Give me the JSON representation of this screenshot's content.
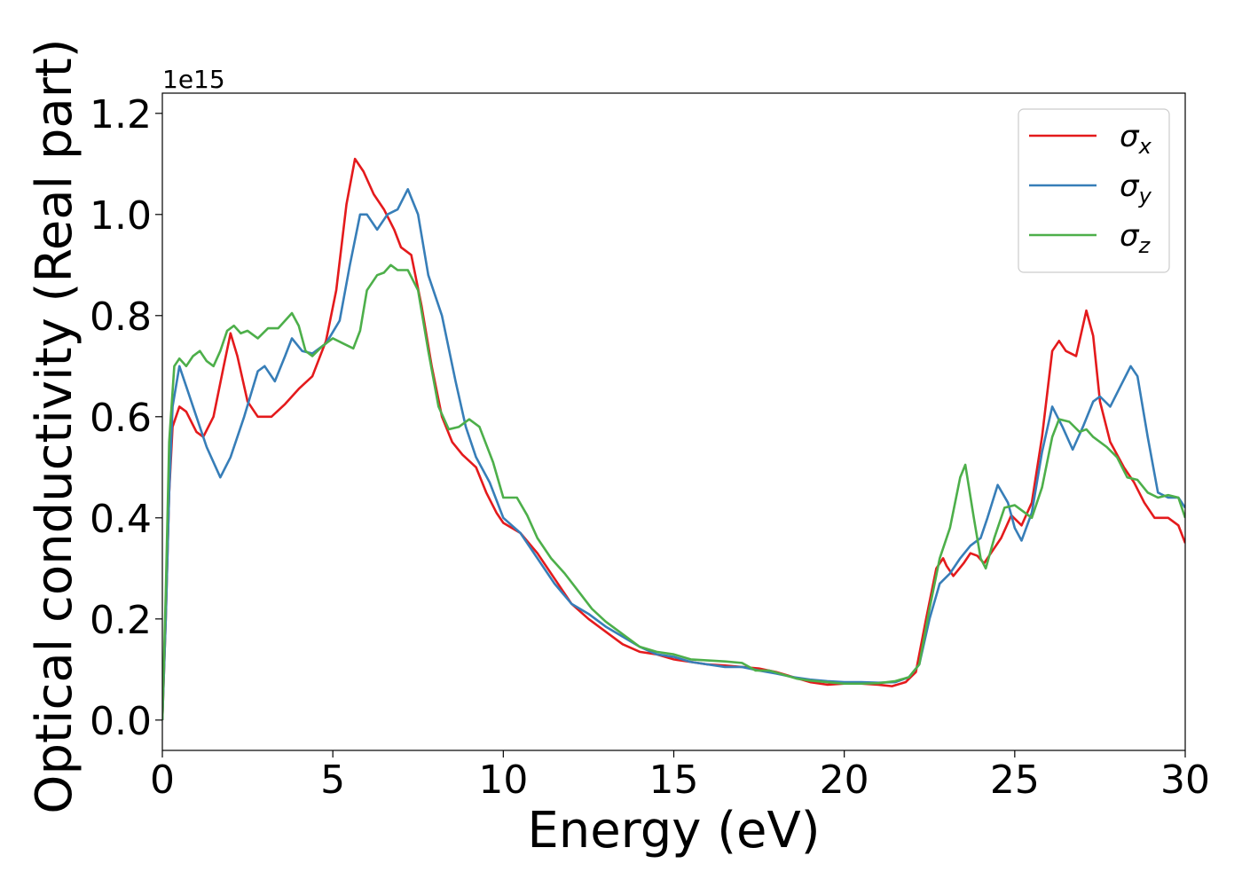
{
  "chart_data": {
    "type": "line",
    "title": "",
    "xlabel": "Energy (eV)",
    "ylabel": "Optical conductivity (Real part)",
    "y_offset_label": "1e15",
    "xlim": [
      0,
      30
    ],
    "ylim": [
      -0.06,
      1.24
    ],
    "xticks": [
      0,
      5,
      10,
      15,
      20,
      25,
      30
    ],
    "xtick_labels": [
      "0",
      "5",
      "10",
      "15",
      "20",
      "25",
      "30"
    ],
    "yticks": [
      0.0,
      0.2,
      0.4,
      0.6,
      0.8,
      1.0,
      1.2
    ],
    "ytick_labels": [
      "0.0",
      "0.2",
      "0.4",
      "0.6",
      "0.8",
      "1.0",
      "1.2"
    ],
    "grid": false,
    "legend_position": "top-right",
    "series": [
      {
        "name": "σx",
        "legend_base": "σ",
        "legend_sub": "x",
        "color": "#e41a1c",
        "points": [
          [
            0,
            0
          ],
          [
            0.1,
            0.2
          ],
          [
            0.2,
            0.45
          ],
          [
            0.3,
            0.58
          ],
          [
            0.5,
            0.62
          ],
          [
            0.7,
            0.61
          ],
          [
            1.0,
            0.57
          ],
          [
            1.2,
            0.56
          ],
          [
            1.5,
            0.6
          ],
          [
            1.8,
            0.7
          ],
          [
            2.0,
            0.765
          ],
          [
            2.2,
            0.72
          ],
          [
            2.5,
            0.63
          ],
          [
            2.8,
            0.6
          ],
          [
            3.2,
            0.6
          ],
          [
            3.6,
            0.625
          ],
          [
            4.0,
            0.655
          ],
          [
            4.4,
            0.68
          ],
          [
            4.8,
            0.75
          ],
          [
            5.1,
            0.85
          ],
          [
            5.4,
            1.02
          ],
          [
            5.65,
            1.11
          ],
          [
            5.9,
            1.085
          ],
          [
            6.2,
            1.04
          ],
          [
            6.5,
            1.01
          ],
          [
            6.8,
            0.97
          ],
          [
            7.0,
            0.935
          ],
          [
            7.3,
            0.92
          ],
          [
            7.6,
            0.82
          ],
          [
            7.9,
            0.7
          ],
          [
            8.2,
            0.6
          ],
          [
            8.5,
            0.55
          ],
          [
            8.8,
            0.525
          ],
          [
            9.2,
            0.5
          ],
          [
            9.5,
            0.45
          ],
          [
            9.8,
            0.41
          ],
          [
            10.0,
            0.39
          ],
          [
            10.5,
            0.37
          ],
          [
            11.0,
            0.33
          ],
          [
            11.5,
            0.28
          ],
          [
            12.0,
            0.23
          ],
          [
            12.5,
            0.2
          ],
          [
            13.0,
            0.175
          ],
          [
            13.5,
            0.15
          ],
          [
            14.0,
            0.135
          ],
          [
            14.5,
            0.13
          ],
          [
            15.0,
            0.12
          ],
          [
            15.5,
            0.115
          ],
          [
            16.0,
            0.11
          ],
          [
            16.5,
            0.108
          ],
          [
            17.0,
            0.105
          ],
          [
            17.5,
            0.102
          ],
          [
            18.0,
            0.095
          ],
          [
            18.5,
            0.085
          ],
          [
            19.0,
            0.075
          ],
          [
            19.5,
            0.07
          ],
          [
            20.0,
            0.072
          ],
          [
            20.5,
            0.072
          ],
          [
            21.0,
            0.07
          ],
          [
            21.4,
            0.067
          ],
          [
            21.8,
            0.075
          ],
          [
            22.1,
            0.095
          ],
          [
            22.4,
            0.2
          ],
          [
            22.7,
            0.3
          ],
          [
            22.9,
            0.32
          ],
          [
            23.0,
            0.305
          ],
          [
            23.2,
            0.285
          ],
          [
            23.5,
            0.31
          ],
          [
            23.7,
            0.33
          ],
          [
            23.9,
            0.325
          ],
          [
            24.1,
            0.31
          ],
          [
            24.3,
            0.33
          ],
          [
            24.6,
            0.36
          ],
          [
            24.9,
            0.405
          ],
          [
            25.2,
            0.385
          ],
          [
            25.5,
            0.43
          ],
          [
            25.8,
            0.56
          ],
          [
            26.1,
            0.73
          ],
          [
            26.3,
            0.75
          ],
          [
            26.5,
            0.73
          ],
          [
            26.8,
            0.72
          ],
          [
            27.1,
            0.81
          ],
          [
            27.3,
            0.76
          ],
          [
            27.5,
            0.63
          ],
          [
            27.8,
            0.55
          ],
          [
            28.2,
            0.5
          ],
          [
            28.5,
            0.47
          ],
          [
            28.8,
            0.43
          ],
          [
            29.1,
            0.4
          ],
          [
            29.5,
            0.4
          ],
          [
            29.8,
            0.385
          ],
          [
            30.0,
            0.35
          ]
        ]
      },
      {
        "name": "σy",
        "legend_base": "σ",
        "legend_sub": "y",
        "color": "#377eb8",
        "points": [
          [
            0,
            0
          ],
          [
            0.1,
            0.2
          ],
          [
            0.2,
            0.45
          ],
          [
            0.3,
            0.62
          ],
          [
            0.5,
            0.7
          ],
          [
            0.7,
            0.66
          ],
          [
            1.0,
            0.6
          ],
          [
            1.3,
            0.54
          ],
          [
            1.7,
            0.48
          ],
          [
            2.0,
            0.52
          ],
          [
            2.4,
            0.6
          ],
          [
            2.8,
            0.69
          ],
          [
            3.0,
            0.7
          ],
          [
            3.3,
            0.67
          ],
          [
            3.6,
            0.72
          ],
          [
            3.8,
            0.755
          ],
          [
            4.1,
            0.73
          ],
          [
            4.4,
            0.725
          ],
          [
            4.8,
            0.745
          ],
          [
            5.2,
            0.79
          ],
          [
            5.5,
            0.9
          ],
          [
            5.8,
            1.0
          ],
          [
            6.0,
            1.0
          ],
          [
            6.3,
            0.97
          ],
          [
            6.6,
            1.0
          ],
          [
            6.9,
            1.01
          ],
          [
            7.2,
            1.05
          ],
          [
            7.5,
            1.0
          ],
          [
            7.8,
            0.88
          ],
          [
            8.2,
            0.8
          ],
          [
            8.6,
            0.67
          ],
          [
            8.9,
            0.58
          ],
          [
            9.2,
            0.52
          ],
          [
            9.6,
            0.47
          ],
          [
            10.0,
            0.4
          ],
          [
            10.5,
            0.37
          ],
          [
            11.0,
            0.32
          ],
          [
            11.5,
            0.27
          ],
          [
            12.0,
            0.23
          ],
          [
            12.5,
            0.21
          ],
          [
            13.0,
            0.185
          ],
          [
            13.5,
            0.165
          ],
          [
            14.0,
            0.145
          ],
          [
            14.5,
            0.13
          ],
          [
            15.0,
            0.125
          ],
          [
            15.5,
            0.115
          ],
          [
            16.0,
            0.11
          ],
          [
            16.5,
            0.105
          ],
          [
            17.0,
            0.105
          ],
          [
            17.5,
            0.098
          ],
          [
            18.0,
            0.092
          ],
          [
            18.5,
            0.085
          ],
          [
            19.0,
            0.08
          ],
          [
            19.5,
            0.077
          ],
          [
            20.0,
            0.075
          ],
          [
            20.5,
            0.075
          ],
          [
            21.0,
            0.074
          ],
          [
            21.5,
            0.075
          ],
          [
            21.9,
            0.085
          ],
          [
            22.2,
            0.11
          ],
          [
            22.5,
            0.2
          ],
          [
            22.8,
            0.27
          ],
          [
            23.1,
            0.29
          ],
          [
            23.4,
            0.32
          ],
          [
            23.7,
            0.345
          ],
          [
            24.0,
            0.36
          ],
          [
            24.2,
            0.4
          ],
          [
            24.5,
            0.465
          ],
          [
            24.8,
            0.43
          ],
          [
            25.0,
            0.38
          ],
          [
            25.2,
            0.355
          ],
          [
            25.5,
            0.41
          ],
          [
            25.8,
            0.53
          ],
          [
            26.1,
            0.62
          ],
          [
            26.4,
            0.58
          ],
          [
            26.7,
            0.535
          ],
          [
            27.0,
            0.58
          ],
          [
            27.3,
            0.63
          ],
          [
            27.5,
            0.64
          ],
          [
            27.8,
            0.62
          ],
          [
            28.1,
            0.66
          ],
          [
            28.4,
            0.7
          ],
          [
            28.6,
            0.68
          ],
          [
            28.9,
            0.56
          ],
          [
            29.2,
            0.45
          ],
          [
            29.5,
            0.44
          ],
          [
            29.8,
            0.44
          ],
          [
            30.0,
            0.42
          ]
        ]
      },
      {
        "name": "σz",
        "legend_base": "σ",
        "legend_sub": "z",
        "color": "#4daf4a",
        "points": [
          [
            0,
            0
          ],
          [
            0.1,
            0.25
          ],
          [
            0.2,
            0.55
          ],
          [
            0.35,
            0.7
          ],
          [
            0.5,
            0.715
          ],
          [
            0.7,
            0.7
          ],
          [
            0.9,
            0.72
          ],
          [
            1.1,
            0.73
          ],
          [
            1.3,
            0.71
          ],
          [
            1.5,
            0.7
          ],
          [
            1.7,
            0.73
          ],
          [
            1.9,
            0.77
          ],
          [
            2.1,
            0.78
          ],
          [
            2.3,
            0.765
          ],
          [
            2.5,
            0.77
          ],
          [
            2.8,
            0.755
          ],
          [
            3.1,
            0.775
          ],
          [
            3.4,
            0.775
          ],
          [
            3.6,
            0.79
          ],
          [
            3.8,
            0.805
          ],
          [
            4.0,
            0.78
          ],
          [
            4.2,
            0.73
          ],
          [
            4.4,
            0.72
          ],
          [
            4.7,
            0.74
          ],
          [
            5.0,
            0.755
          ],
          [
            5.3,
            0.745
          ],
          [
            5.6,
            0.735
          ],
          [
            5.8,
            0.77
          ],
          [
            6.0,
            0.85
          ],
          [
            6.3,
            0.88
          ],
          [
            6.5,
            0.885
          ],
          [
            6.7,
            0.9
          ],
          [
            6.9,
            0.89
          ],
          [
            7.2,
            0.89
          ],
          [
            7.5,
            0.85
          ],
          [
            7.8,
            0.73
          ],
          [
            8.1,
            0.62
          ],
          [
            8.4,
            0.575
          ],
          [
            8.7,
            0.58
          ],
          [
            9.0,
            0.595
          ],
          [
            9.3,
            0.58
          ],
          [
            9.7,
            0.51
          ],
          [
            10.0,
            0.44
          ],
          [
            10.2,
            0.44
          ],
          [
            10.4,
            0.44
          ],
          [
            10.7,
            0.405
          ],
          [
            11.0,
            0.36
          ],
          [
            11.4,
            0.32
          ],
          [
            11.8,
            0.29
          ],
          [
            12.2,
            0.255
          ],
          [
            12.6,
            0.22
          ],
          [
            13.0,
            0.195
          ],
          [
            13.5,
            0.17
          ],
          [
            14.0,
            0.145
          ],
          [
            14.5,
            0.135
          ],
          [
            15.0,
            0.13
          ],
          [
            15.5,
            0.12
          ],
          [
            16.0,
            0.118
          ],
          [
            16.5,
            0.116
          ],
          [
            17.0,
            0.113
          ],
          [
            17.4,
            0.098
          ],
          [
            17.8,
            0.098
          ],
          [
            18.2,
            0.09
          ],
          [
            18.6,
            0.082
          ],
          [
            19.0,
            0.078
          ],
          [
            19.5,
            0.075
          ],
          [
            20.0,
            0.072
          ],
          [
            20.5,
            0.072
          ],
          [
            21.0,
            0.073
          ],
          [
            21.5,
            0.077
          ],
          [
            21.9,
            0.085
          ],
          [
            22.2,
            0.11
          ],
          [
            22.5,
            0.22
          ],
          [
            22.8,
            0.32
          ],
          [
            23.1,
            0.38
          ],
          [
            23.4,
            0.48
          ],
          [
            23.55,
            0.505
          ],
          [
            23.8,
            0.4
          ],
          [
            24.0,
            0.32
          ],
          [
            24.15,
            0.3
          ],
          [
            24.4,
            0.36
          ],
          [
            24.7,
            0.42
          ],
          [
            25.0,
            0.425
          ],
          [
            25.3,
            0.41
          ],
          [
            25.5,
            0.4
          ],
          [
            25.8,
            0.46
          ],
          [
            26.1,
            0.56
          ],
          [
            26.3,
            0.595
          ],
          [
            26.6,
            0.59
          ],
          [
            26.9,
            0.57
          ],
          [
            27.1,
            0.575
          ],
          [
            27.3,
            0.56
          ],
          [
            27.7,
            0.54
          ],
          [
            28.0,
            0.52
          ],
          [
            28.3,
            0.48
          ],
          [
            28.6,
            0.475
          ],
          [
            28.9,
            0.45
          ],
          [
            29.2,
            0.44
          ],
          [
            29.5,
            0.445
          ],
          [
            29.8,
            0.44
          ],
          [
            30.0,
            0.4
          ]
        ]
      }
    ]
  }
}
